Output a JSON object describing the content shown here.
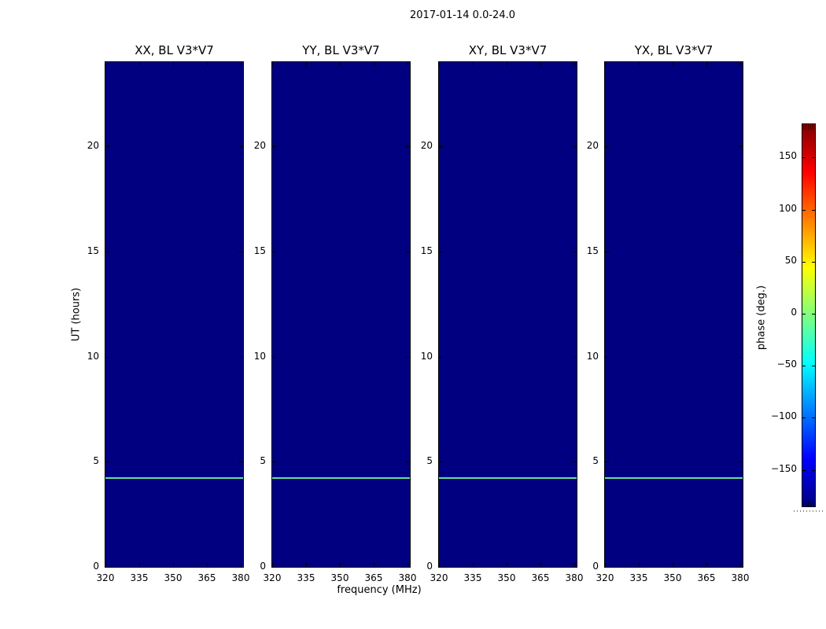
{
  "figure": {
    "suptitle": "2017-01-14 0.0-24.0",
    "xlabel": "frequency (MHz)",
    "ylabel": "UT (hours)",
    "background": "#ffffff"
  },
  "panels": [
    {
      "title": "XX, BL V3*V7"
    },
    {
      "title": "YY, BL V3*V7"
    },
    {
      "title": "XY, BL V3*V7"
    },
    {
      "title": "YX, BL V3*V7"
    }
  ],
  "axes": {
    "xticks": [
      320,
      335,
      350,
      365,
      380
    ],
    "xmin": 320,
    "xmax": 381,
    "yticks": [
      0,
      5,
      10,
      15,
      20
    ],
    "ymin": 0,
    "ymax": 24
  },
  "heatmap": {
    "fill_color": "#000080",
    "event_line": {
      "ut_hours": 4.25,
      "color": "#63e296",
      "thickness_px": 2
    }
  },
  "colorbar": {
    "label": "phase (deg.)",
    "ticks": [
      150,
      100,
      50,
      0,
      -50,
      -100,
      -150
    ],
    "range_deg": [
      -180,
      180
    ],
    "gradient_colors": [
      "#000080",
      "#0000ff",
      "#00ffff",
      "#ffff00",
      "#ff0000",
      "#800000"
    ],
    "gradient_stops": [
      0,
      0.125,
      0.375,
      0.625,
      0.875,
      1
    ]
  },
  "chart_data": {
    "type": "heatmap",
    "title": "2017-01-14 0.0-24.0",
    "xlabel": "frequency (MHz)",
    "ylabel": "UT (hours)",
    "colorbar_label": "phase (deg.)",
    "panels": [
      "XX, BL V3*V7",
      "YY, BL V3*V7",
      "XY, BL V3*V7",
      "YX, BL V3*V7"
    ],
    "x_range_mhz": [
      320,
      381
    ],
    "y_range_hours": [
      0,
      24
    ],
    "xticks": [
      320,
      335,
      350,
      365,
      380
    ],
    "yticks": [
      0,
      5,
      10,
      15,
      20
    ],
    "colorbar_ticks": [
      150,
      100,
      50,
      0,
      -50,
      -100,
      -150
    ],
    "color_scale": "jet",
    "color_range_deg": [
      -180,
      180
    ],
    "background_phase_deg": -178,
    "features": [
      {
        "type": "horizontal_line",
        "ut_hours": 4.25,
        "phase_deg": 5,
        "extent": "all frequencies, all four panels"
      }
    ],
    "legend_position": "right-colorbar",
    "grid": false
  }
}
